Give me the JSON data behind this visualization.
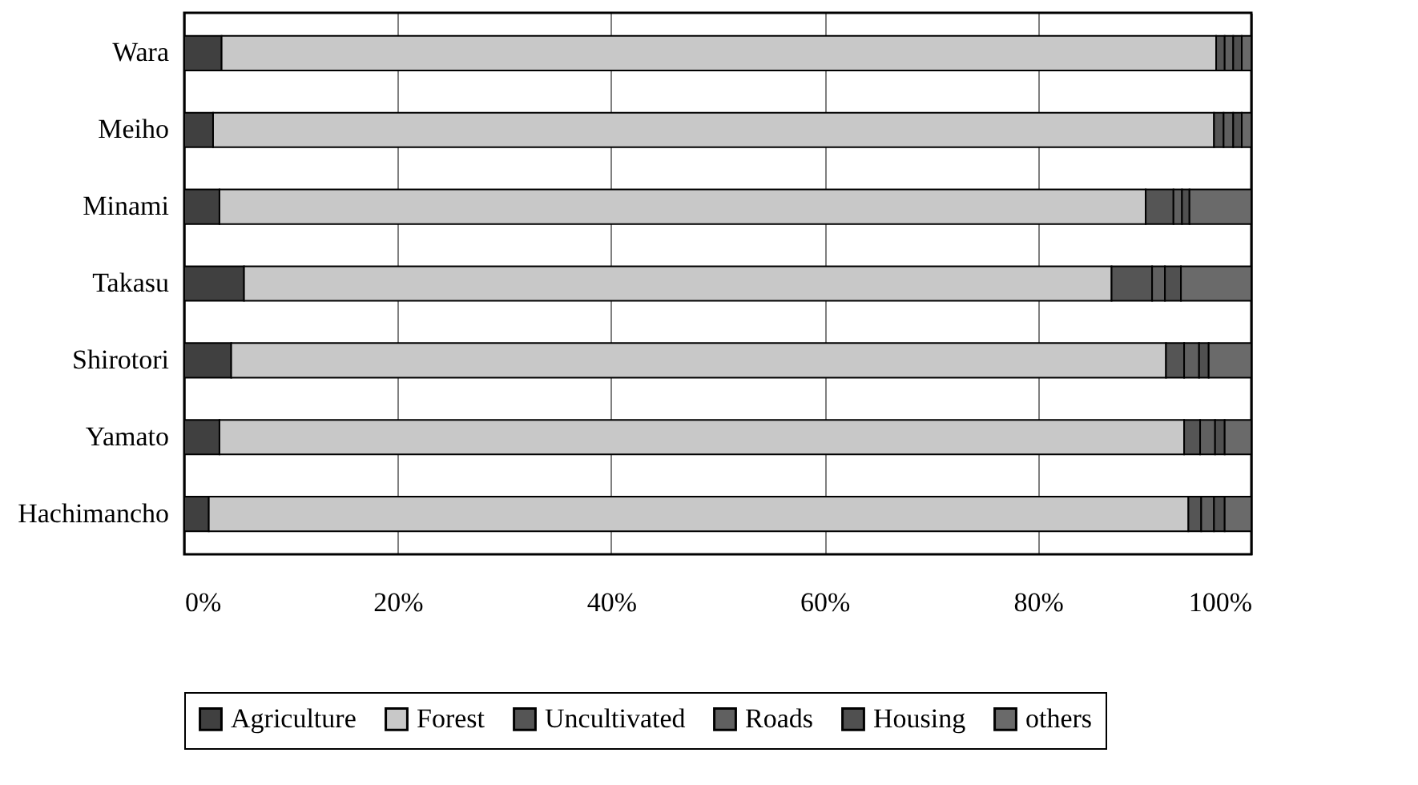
{
  "chart_data": {
    "type": "bar",
    "orientation": "horizontal",
    "stacked": true,
    "categories": [
      "Wara",
      "Meiho",
      "Minami",
      "Takasu",
      "Shirotori",
      "Yamato",
      "Hachimancho"
    ],
    "series": [
      {
        "name": "Agriculture",
        "color": "#404040",
        "values": [
          3.5,
          2.7,
          3.3,
          5.6,
          4.4,
          3.3,
          2.3
        ]
      },
      {
        "name": "Forest",
        "color": "#c8c8c8",
        "values": [
          93.2,
          93.8,
          86.8,
          81.3,
          87.6,
          90.4,
          91.8
        ]
      },
      {
        "name": "Uncultivated",
        "color": "#555555",
        "values": [
          0.8,
          0.9,
          2.6,
          3.8,
          1.7,
          1.5,
          1.2
        ]
      },
      {
        "name": "Roads",
        "color": "#606060",
        "values": [
          0.8,
          0.9,
          0.8,
          1.2,
          1.4,
          1.4,
          1.2
        ]
      },
      {
        "name": "Housing",
        "color": "#505050",
        "values": [
          0.8,
          0.8,
          0.7,
          1.5,
          0.9,
          0.9,
          1.0
        ]
      },
      {
        "name": "others",
        "color": "#6a6a6a",
        "values": [
          0.9,
          0.9,
          5.8,
          6.6,
          4.0,
          2.5,
          2.5
        ]
      }
    ],
    "xlim": [
      0,
      100
    ],
    "xticks": [
      {
        "value": 0,
        "label": "0%"
      },
      {
        "value": 20,
        "label": "20%"
      },
      {
        "value": 40,
        "label": "40%"
      },
      {
        "value": 60,
        "label": "60%"
      },
      {
        "value": 80,
        "label": "80%"
      },
      {
        "value": 100,
        "label": "100%"
      }
    ],
    "grid": "x",
    "legend": "bottom"
  }
}
